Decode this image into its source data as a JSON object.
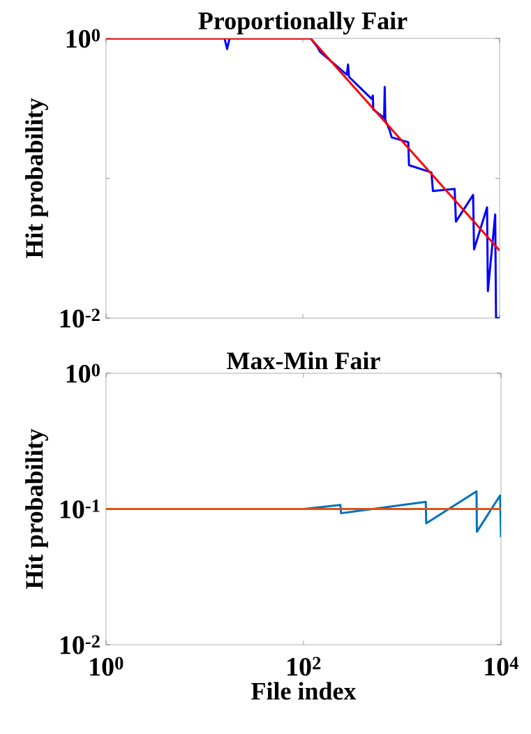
{
  "chart_data": [
    {
      "type": "line",
      "title": "Proportionally Fair",
      "ylabel": "Hit probability",
      "log": "xy",
      "xlim": [
        1,
        10000
      ],
      "ylim": [
        0.01,
        1
      ],
      "xticks": [
        1,
        100,
        10000
      ],
      "yticks": [
        {
          "value": 1,
          "label": "10$^{0}$"
        },
        {
          "value": 0.1,
          "label": null
        },
        {
          "value": 0.01,
          "label": "10$^{-2}$"
        }
      ],
      "tick_labels": "y",
      "series": [
        {
          "color": "#0000ff",
          "x": [
            1,
            16,
            17,
            18,
            120,
            140,
            150,
            280,
            288,
            295,
            500,
            515,
            520,
            670,
            680,
            690,
            764,
            800,
            1180,
            1200,
            2030,
            2100,
            3490,
            3600,
            5380,
            5500,
            7460,
            7600,
            9020,
            9200,
            10000
          ],
          "values": [
            1,
            1,
            0.84,
            1,
            1,
            0.87,
            0.8,
            0.55,
            0.65,
            0.53,
            0.37,
            0.39,
            0.31,
            0.27,
            0.45,
            0.26,
            0.22,
            0.196,
            0.181,
            0.124,
            0.11,
            0.081,
            0.084,
            0.049,
            0.076,
            0.031,
            0.062,
            0.0156,
            0.055,
            0.01,
            0.01
          ]
        },
        {
          "color": "#ff0000",
          "x": [
            1,
            120,
            10000
          ],
          "values": [
            1,
            1,
            0.0305
          ]
        }
      ]
    },
    {
      "type": "line",
      "title": "Max-Min Fair",
      "xlabel": "File index",
      "ylabel": "Hit probability",
      "log": "xy",
      "xlim": [
        1,
        10000
      ],
      "ylim": [
        0.01,
        1
      ],
      "xticks": [
        {
          "value": 1,
          "label": "10$^{0}$"
        },
        {
          "value": 100,
          "label": "10$^{2}$"
        },
        {
          "value": 10000,
          "label": "10$^{4}$"
        }
      ],
      "yticks": [
        {
          "value": 1,
          "label": "10$^{0}$"
        },
        {
          "value": 0.1,
          "label": "10$^{-1}$"
        },
        {
          "value": 0.01,
          "label": "10$^{-2}$"
        }
      ],
      "series": [
        {
          "color": "#0072bd",
          "x": [
            1,
            100,
            236,
            240,
            1730,
            1750,
            5650,
            5700,
            9800,
            10000
          ],
          "values": [
            0.1,
            0.1,
            0.107,
            0.093,
            0.113,
            0.0785,
            0.135,
            0.068,
            0.126,
            0.062
          ]
        },
        {
          "color": "#d95319",
          "x": [
            1,
            10000
          ],
          "values": [
            0.1,
            0.1
          ]
        }
      ]
    }
  ]
}
